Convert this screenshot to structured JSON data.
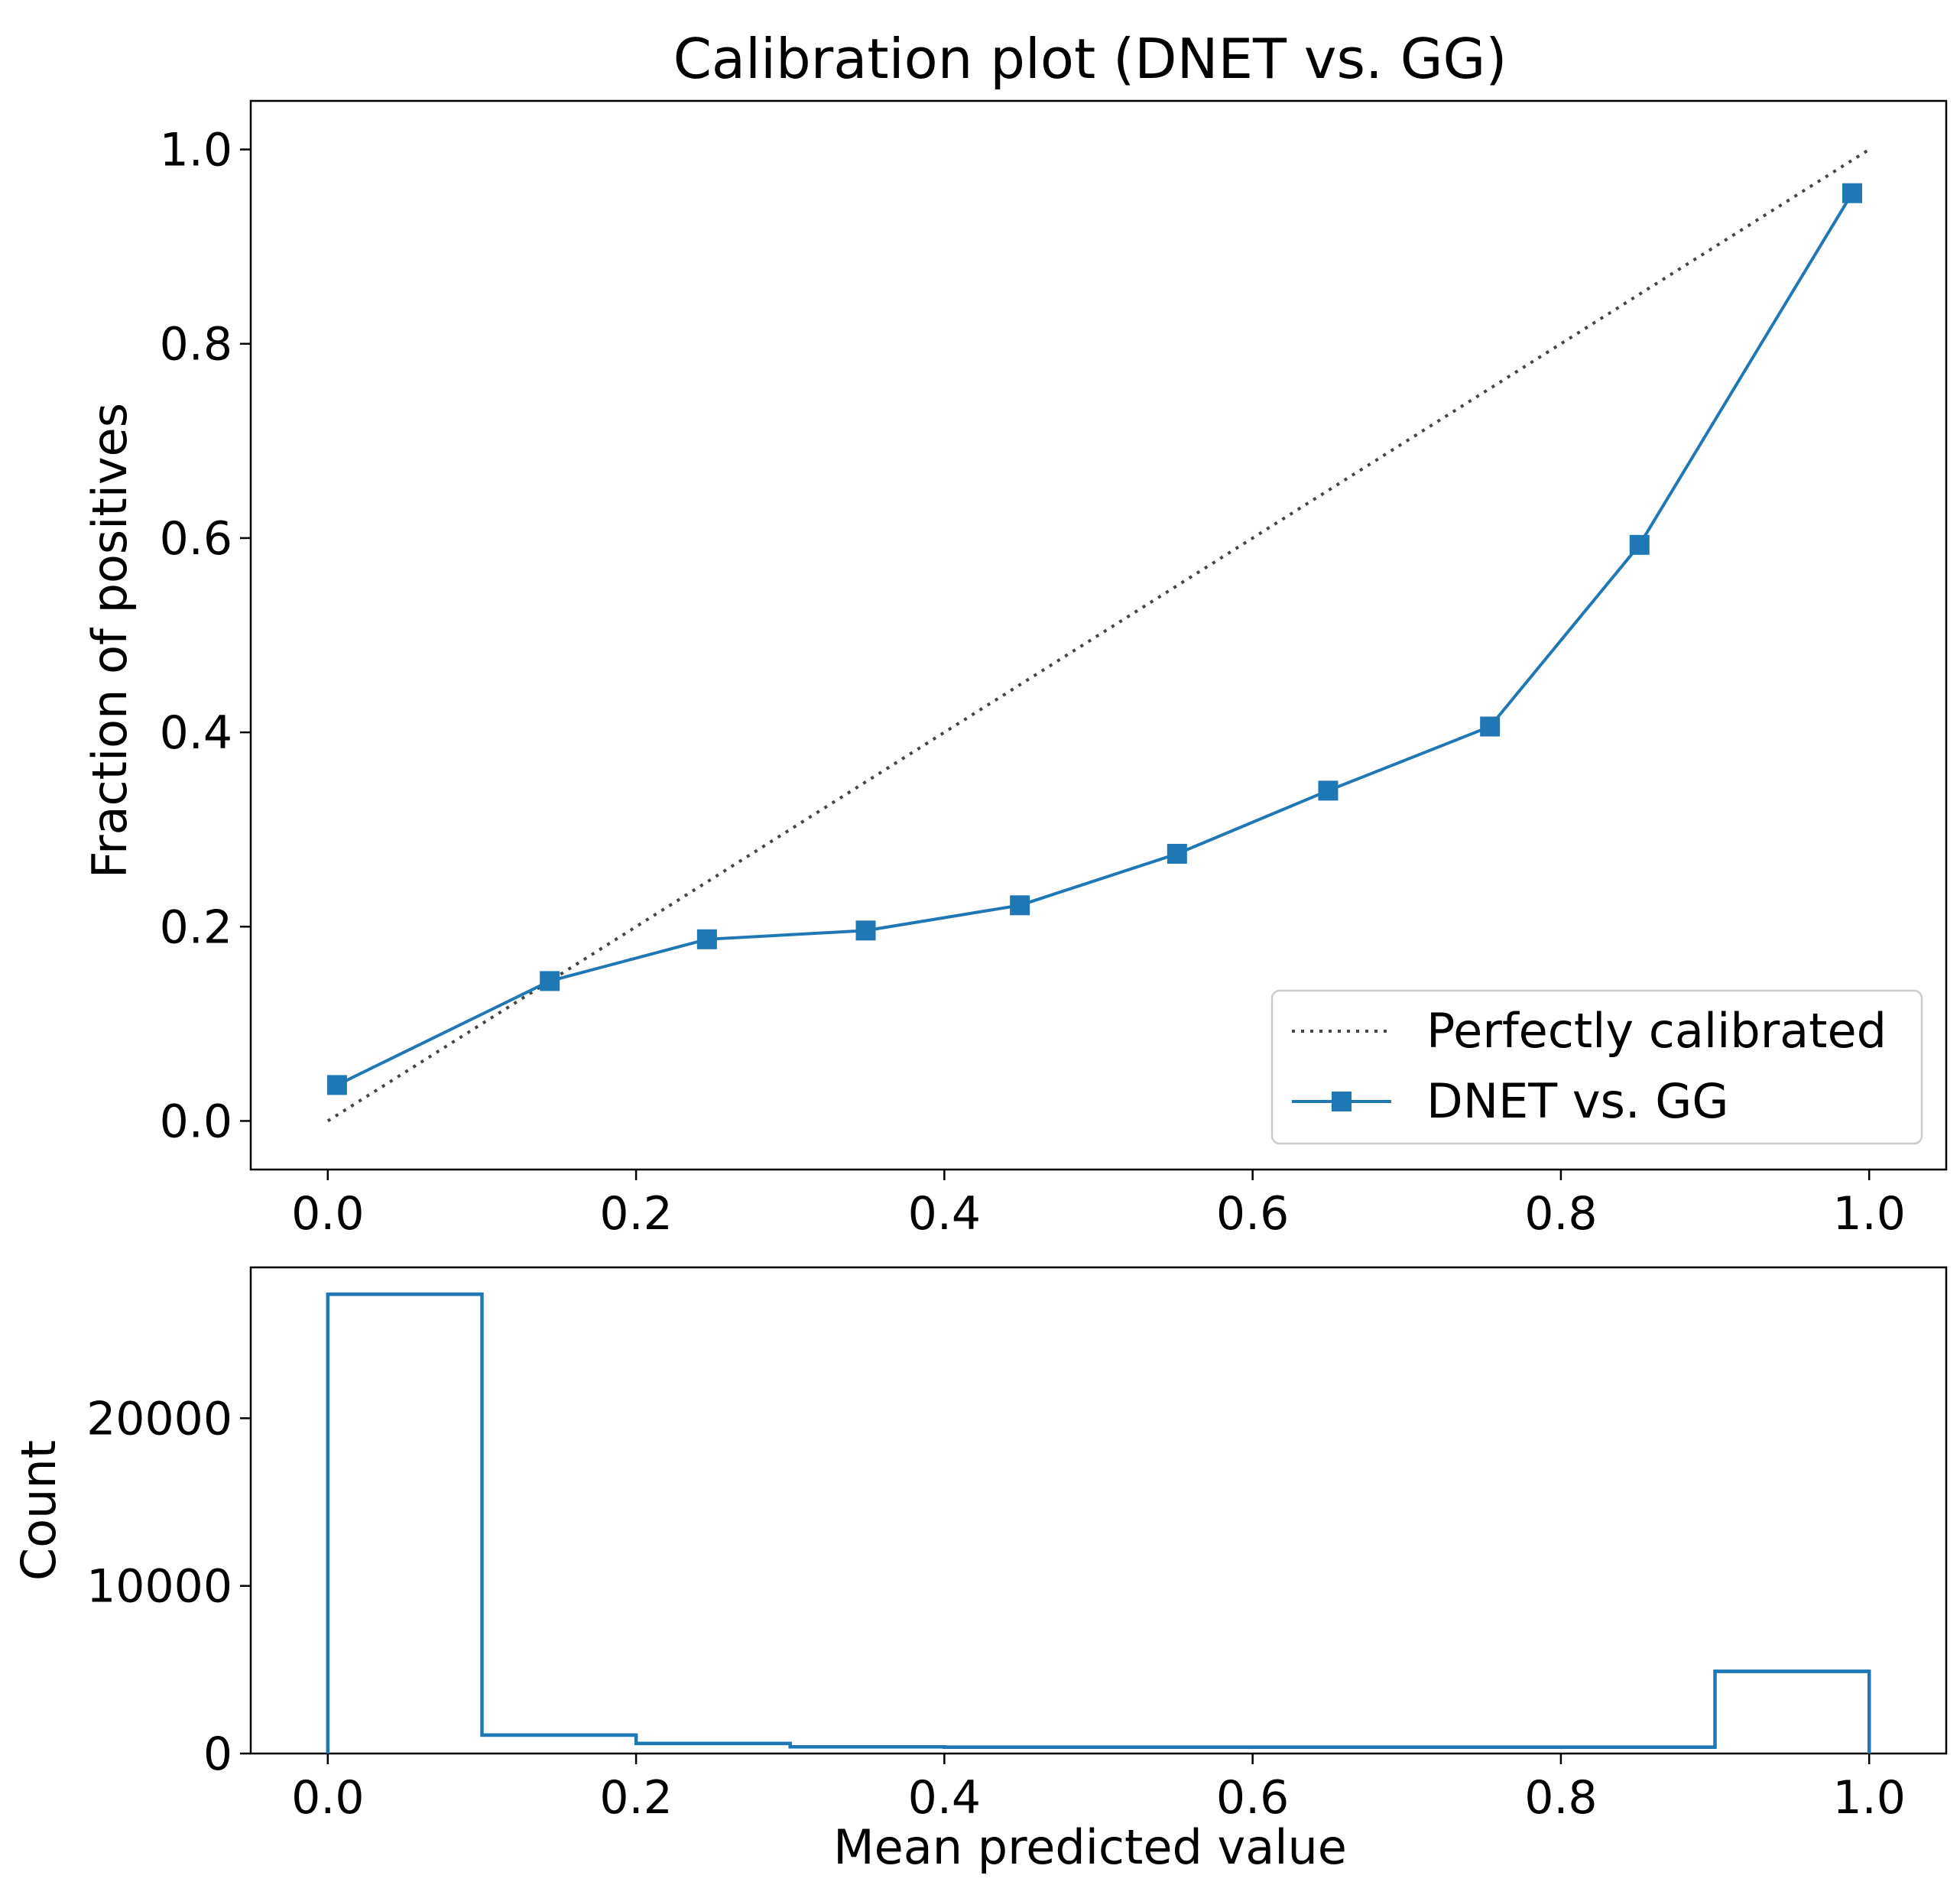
{
  "chart_data": [
    {
      "type": "line",
      "title": "Calibration plot (DNET vs. GG)",
      "xlabel": "",
      "ylabel": "Fraction of positives",
      "xlim": [
        -0.05,
        1.05
      ],
      "ylim": [
        -0.05,
        1.05
      ],
      "xticks": [
        "0.0",
        "0.2",
        "0.4",
        "0.6",
        "0.8",
        "1.0"
      ],
      "yticks": [
        "0.0",
        "0.2",
        "0.4",
        "0.6",
        "0.8",
        "1.0"
      ],
      "legend_position": "bottom-right",
      "series": [
        {
          "name": "Perfectly calibrated",
          "style": "dotted",
          "color": "#444444",
          "x": [
            0,
            1
          ],
          "y": [
            0,
            1
          ]
        },
        {
          "name": "DNET vs. GG",
          "style": "solid-square-markers",
          "color": "#1f77b4",
          "x": [
            0.006,
            0.144,
            0.246,
            0.349,
            0.449,
            0.551,
            0.649,
            0.754,
            0.851,
            0.989
          ],
          "y": [
            0.037,
            0.144,
            0.187,
            0.196,
            0.222,
            0.275,
            0.34,
            0.406,
            0.593,
            0.955
          ]
        }
      ]
    },
    {
      "type": "histogram",
      "title": "",
      "xlabel": "Mean predicted value",
      "ylabel": "Count",
      "xlim": [
        -0.05,
        1.05
      ],
      "ylim": [
        0,
        29000
      ],
      "xticks": [
        "0.0",
        "0.2",
        "0.4",
        "0.6",
        "0.8",
        "1.0"
      ],
      "yticks": [
        {
          "value": 0,
          "label": "0"
        },
        {
          "value": 10000,
          "label": "10000"
        },
        {
          "value": 20000,
          "label": "20000"
        }
      ],
      "color": "#1f77b4",
      "bin_edges": [
        0.0,
        0.1,
        0.2,
        0.3,
        0.4,
        0.5,
        0.6,
        0.7,
        0.8,
        0.9,
        1.0
      ],
      "counts": [
        27400,
        1100,
        600,
        400,
        380,
        380,
        380,
        380,
        380,
        4900
      ]
    }
  ]
}
